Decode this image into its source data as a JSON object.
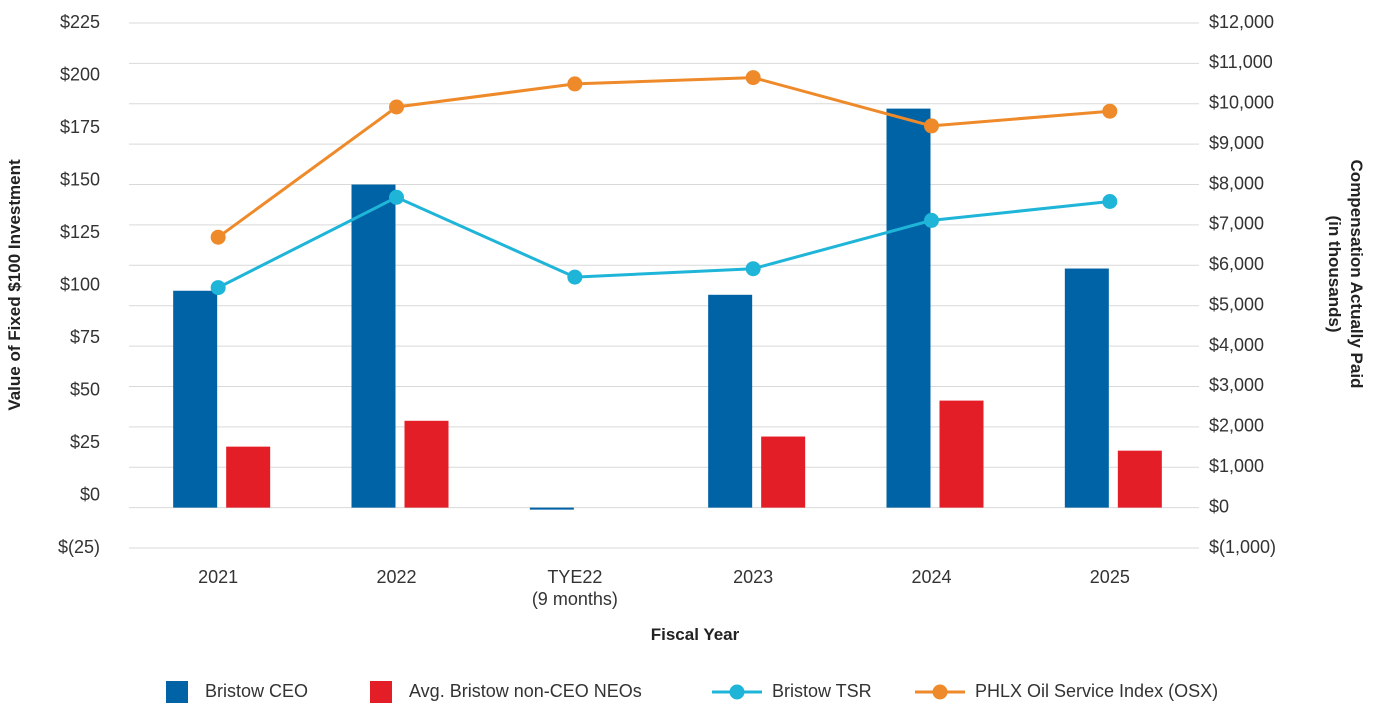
{
  "chart_data": {
    "type": "bar_line",
    "x_label": "Fiscal Year",
    "y_label": "Value of Fixed $100 Investment",
    "y2_label": "Compensation Actually Paid\n(in thousands)",
    "categories": [
      "2021",
      "2022",
      "TYE22\n(9 months)",
      "2023",
      "2024",
      "2025"
    ],
    "series": [
      {
        "name": "Bristow CEO",
        "type": "bar",
        "axis": "y2",
        "color": "#0063a6",
        "values": [
          5370,
          8000,
          -50,
          5270,
          9880,
          5920
        ]
      },
      {
        "name": "Avg. Bristow non-CEO NEOs",
        "type": "bar",
        "axis": "y2",
        "color": "#e31e26",
        "values": [
          1510,
          2150,
          null,
          1760,
          2650,
          1410
        ]
      },
      {
        "name": "Bristow TSR",
        "type": "line",
        "axis": "y",
        "color": "#1fb5d8",
        "values": [
          99,
          142,
          104,
          108,
          131,
          140
        ]
      },
      {
        "name": "PHLX Oil Service Index (OSX)",
        "type": "line",
        "axis": "y",
        "color": "#ee8a2a",
        "values": [
          123,
          185,
          196,
          199,
          176,
          183
        ]
      }
    ],
    "ylim": [
      -25,
      225
    ],
    "yticks": [
      {
        "value": -25,
        "label": "$(25)"
      },
      {
        "value": 0,
        "label": "$0"
      },
      {
        "value": 25,
        "label": "$25"
      },
      {
        "value": 50,
        "label": "$50"
      },
      {
        "value": 75,
        "label": "$75"
      },
      {
        "value": 100,
        "label": "$100"
      },
      {
        "value": 125,
        "label": "$125"
      },
      {
        "value": 150,
        "label": "$150"
      },
      {
        "value": 175,
        "label": "$175"
      },
      {
        "value": 200,
        "label": "$200"
      },
      {
        "value": 225,
        "label": "$225"
      }
    ],
    "y2lim": [
      -1000,
      12000
    ],
    "y2ticks": [
      {
        "value": -1000,
        "label": "$(1,000)"
      },
      {
        "value": 0,
        "label": "$0"
      },
      {
        "value": 1000,
        "label": "$1,000"
      },
      {
        "value": 2000,
        "label": "$2,000"
      },
      {
        "value": 3000,
        "label": "$3,000"
      },
      {
        "value": 4000,
        "label": "$4,000"
      },
      {
        "value": 5000,
        "label": "$5,000"
      },
      {
        "value": 6000,
        "label": "$6,000"
      },
      {
        "value": 7000,
        "label": "$7,000"
      },
      {
        "value": 8000,
        "label": "$8,000"
      },
      {
        "value": 9000,
        "label": "$9,000"
      },
      {
        "value": 10000,
        "label": "$10,000"
      },
      {
        "value": 11000,
        "label": "$11,000"
      },
      {
        "value": 12000,
        "label": "$12,000"
      }
    ],
    "grid": true,
    "legend": "bottom"
  }
}
